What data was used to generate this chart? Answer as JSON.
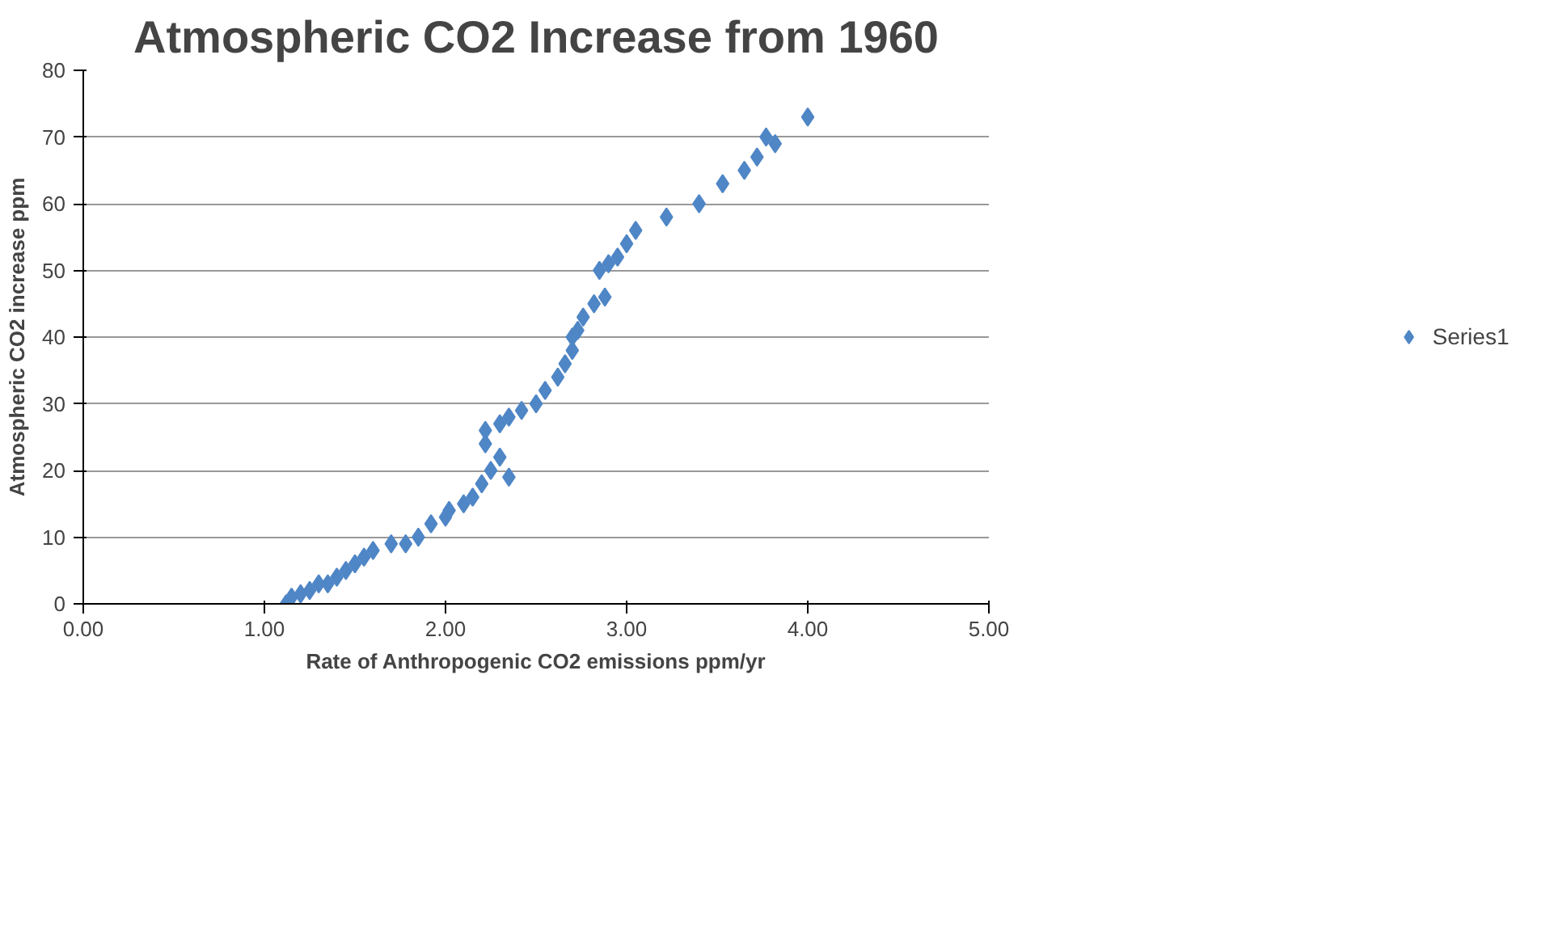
{
  "chart_data": {
    "type": "scatter",
    "title": "Atmospheric CO2 Increase from 1960",
    "xlabel": "Rate of Anthropogenic CO2 emissions ppm/yr",
    "ylabel": "Atmospheric CO2 increase ppm",
    "xlim": [
      0,
      5
    ],
    "ylim": [
      0,
      80
    ],
    "xticks": [
      {
        "value": 0,
        "label": "0.00"
      },
      {
        "value": 1,
        "label": "1.00"
      },
      {
        "value": 2,
        "label": "2.00"
      },
      {
        "value": 3,
        "label": "3.00"
      },
      {
        "value": 4,
        "label": "4.00"
      },
      {
        "value": 5,
        "label": "5.00"
      }
    ],
    "yticks": [
      0,
      10,
      20,
      30,
      40,
      50,
      60,
      70,
      80
    ],
    "grid": "y",
    "legend": "right",
    "marker": "diamond",
    "series": [
      {
        "name": "Series1",
        "color": "#4f86c6",
        "x": [
          1.12,
          1.15,
          1.2,
          1.25,
          1.3,
          1.35,
          1.4,
          1.45,
          1.5,
          1.55,
          1.6,
          1.7,
          1.78,
          1.85,
          1.92,
          2.0,
          2.02,
          2.1,
          2.15,
          2.2,
          2.25,
          2.35,
          2.3,
          2.22,
          2.22,
          2.3,
          2.35,
          2.42,
          2.5,
          2.55,
          2.62,
          2.66,
          2.7,
          2.7,
          2.73,
          2.76,
          2.82,
          2.88,
          2.85,
          2.9,
          2.95,
          3.0,
          3.05,
          3.22,
          3.4,
          3.53,
          3.65,
          3.72,
          3.77,
          3.82,
          4.0
        ],
        "values": [
          0,
          1,
          1.5,
          2,
          3,
          3,
          4,
          5,
          6,
          7,
          8,
          9,
          9,
          10,
          12,
          13,
          14,
          15,
          16,
          18,
          20,
          19,
          22,
          24,
          26,
          27,
          28,
          29,
          30,
          32,
          34,
          36,
          38,
          40,
          41,
          43,
          45,
          46,
          50,
          51,
          52,
          54,
          56,
          58,
          60,
          63,
          65,
          67,
          70,
          69,
          73
        ]
      }
    ]
  }
}
